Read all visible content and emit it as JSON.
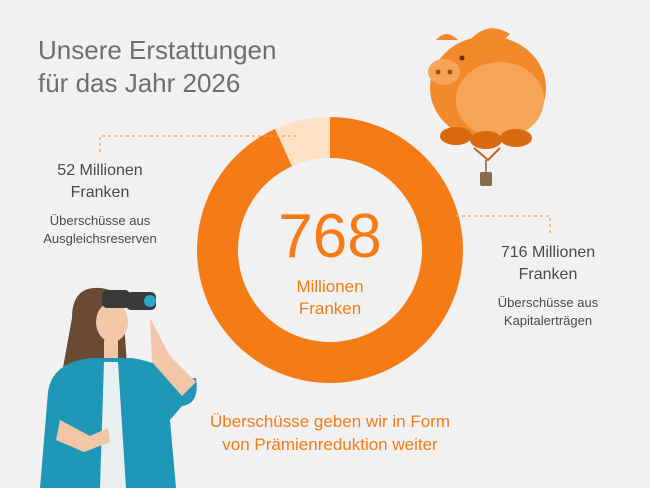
{
  "title": "Unsere Erstattungen\nfür das Jahr 2026",
  "center": {
    "value": "768",
    "unit": "Millionen\nFranken"
  },
  "callouts": {
    "left": {
      "amount": "52 Millionen\nFranken",
      "description": "Überschüsse aus\nAusgleichsreserven"
    },
    "right": {
      "amount": "716 Millionen\nFranken",
      "description": "Überschüsse aus\nKapitalerträgen"
    }
  },
  "footer": "Überschüsse geben wir in Form\nvon Prämienreduktion weiter",
  "colors": {
    "primary": "#f47b16",
    "light": "#fde1c4",
    "text": "#4a4a4a",
    "title": "#6f6f6f",
    "background": "#f1f1f1"
  },
  "illustrations": [
    "piggy-bank-balloon",
    "woman-with-binoculars"
  ],
  "chart_data": {
    "type": "pie",
    "title": "",
    "total": 768,
    "slices": [
      {
        "name": "Überschüsse aus Kapitalerträgen",
        "value": 716,
        "color": "#f47b16"
      },
      {
        "name": "Überschüsse aus Ausgleichsreserven",
        "value": 52,
        "color": "#fde1c4"
      }
    ]
  }
}
